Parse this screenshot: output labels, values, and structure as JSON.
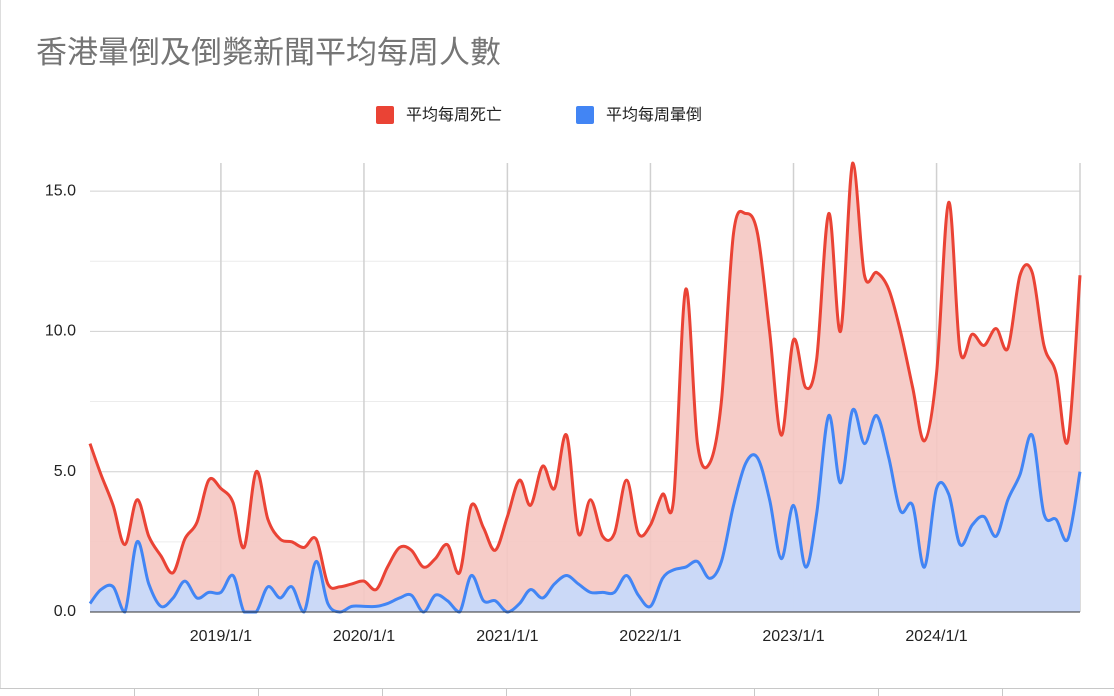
{
  "chart_data": {
    "type": "area",
    "title": "香港暈倒及倒斃新聞平均每周人數",
    "x": [
      "2018/2/1",
      "2018/3/1",
      "2018/4/1",
      "2018/5/1",
      "2018/6/1",
      "2018/7/1",
      "2018/8/1",
      "2018/9/1",
      "2018/10/1",
      "2018/11/1",
      "2018/12/1",
      "2019/1/1",
      "2019/2/1",
      "2019/3/1",
      "2019/4/1",
      "2019/5/1",
      "2019/6/1",
      "2019/7/1",
      "2019/8/1",
      "2019/9/1",
      "2019/10/1",
      "2019/11/1",
      "2019/12/1",
      "2020/1/1",
      "2020/2/1",
      "2020/3/1",
      "2020/4/1",
      "2020/5/1",
      "2020/6/1",
      "2020/7/1",
      "2020/8/1",
      "2020/9/1",
      "2020/10/1",
      "2020/11/1",
      "2020/12/1",
      "2021/1/1",
      "2021/2/1",
      "2021/3/1",
      "2021/4/1",
      "2021/5/1",
      "2021/6/1",
      "2021/7/1",
      "2021/8/1",
      "2021/9/1",
      "2021/10/1",
      "2021/11/1",
      "2021/12/1",
      "2022/1/1",
      "2022/2/1",
      "2022/3/1",
      "2022/4/1",
      "2022/5/1",
      "2022/6/1",
      "2022/7/1",
      "2022/8/1",
      "2022/9/1",
      "2022/10/1",
      "2022/11/1",
      "2022/12/1",
      "2023/1/1",
      "2023/2/1",
      "2023/3/1",
      "2023/4/1",
      "2023/5/1",
      "2023/6/1",
      "2023/7/1",
      "2023/8/1",
      "2023/9/1",
      "2023/10/1",
      "2023/11/1",
      "2023/12/1",
      "2024/1/1",
      "2024/2/1",
      "2024/3/1",
      "2024/4/1",
      "2024/5/1",
      "2024/6/1",
      "2024/7/1",
      "2024/8/1",
      "2024/9/1",
      "2024/10/1",
      "2024/11/1",
      "2024/12/1",
      "2025/1/1"
    ],
    "series": [
      {
        "name": "平均每周死亡",
        "color": "#ea4335",
        "fill": "#f5c6c2",
        "values": [
          6.0,
          4.9,
          3.8,
          2.4,
          4.0,
          2.7,
          2.0,
          1.4,
          2.6,
          3.2,
          4.7,
          4.4,
          3.9,
          2.3,
          5.0,
          3.3,
          2.6,
          2.5,
          2.3,
          2.6,
          1.0,
          0.9,
          1.0,
          1.1,
          0.8,
          1.6,
          2.3,
          2.2,
          1.6,
          1.9,
          2.4,
          1.4,
          3.8,
          3.0,
          2.2,
          3.4,
          4.7,
          3.8,
          5.2,
          4.4,
          6.3,
          2.8,
          4.0,
          2.7,
          2.8,
          4.7,
          2.8,
          3.1,
          4.2,
          4.0,
          11.5,
          6.0,
          5.3,
          7.5,
          13.5,
          14.2,
          13.5,
          10.0,
          6.3,
          9.7,
          8.0,
          9.0,
          14.2,
          10.0,
          16.0,
          12.0,
          12.1,
          11.5,
          10.0,
          8.0,
          6.1,
          8.5,
          14.6,
          9.3,
          9.9,
          9.5,
          10.1,
          9.4,
          12.0,
          12.1,
          9.5,
          8.5,
          6.1,
          12.0
        ]
      },
      {
        "name": "平均每周暈倒",
        "color": "#4285f4",
        "fill": "#c6dafc",
        "values": [
          0.3,
          0.8,
          0.9,
          0.0,
          2.5,
          1.0,
          0.2,
          0.5,
          1.1,
          0.5,
          0.7,
          0.7,
          1.3,
          0.0,
          0.0,
          0.9,
          0.5,
          0.9,
          0.0,
          1.8,
          0.3,
          0.0,
          0.2,
          0.2,
          0.2,
          0.3,
          0.5,
          0.6,
          0.0,
          0.6,
          0.4,
          0.0,
          1.3,
          0.4,
          0.4,
          0.0,
          0.3,
          0.8,
          0.5,
          1.0,
          1.3,
          1.0,
          0.7,
          0.7,
          0.7,
          1.3,
          0.6,
          0.2,
          1.2,
          1.5,
          1.6,
          1.8,
          1.2,
          1.8,
          3.8,
          5.3,
          5.5,
          4.0,
          1.9,
          3.8,
          1.6,
          3.5,
          7.0,
          4.6,
          7.2,
          6.0,
          7.0,
          5.5,
          3.6,
          3.8,
          1.6,
          4.4,
          4.2,
          2.4,
          3.1,
          3.4,
          2.7,
          4.0,
          4.9,
          6.3,
          3.5,
          3.3,
          2.6,
          5.0
        ]
      }
    ],
    "xlim": [
      "2018/2/1",
      "2025/1/1"
    ],
    "xticks": [
      "2019/1/1",
      "2020/1/1",
      "2021/1/1",
      "2022/1/1",
      "2023/1/1",
      "2024/1/1"
    ],
    "ylim": [
      0,
      16
    ],
    "yticks": [
      {
        "value": 0,
        "label": "0.0"
      },
      {
        "value": 5,
        "label": "5.0"
      },
      {
        "value": 10,
        "label": "10.0"
      },
      {
        "value": 15,
        "label": "15.0"
      }
    ],
    "minor_yticks": [
      2.5,
      7.5,
      12.5
    ],
    "grid": true,
    "legend": "top"
  }
}
